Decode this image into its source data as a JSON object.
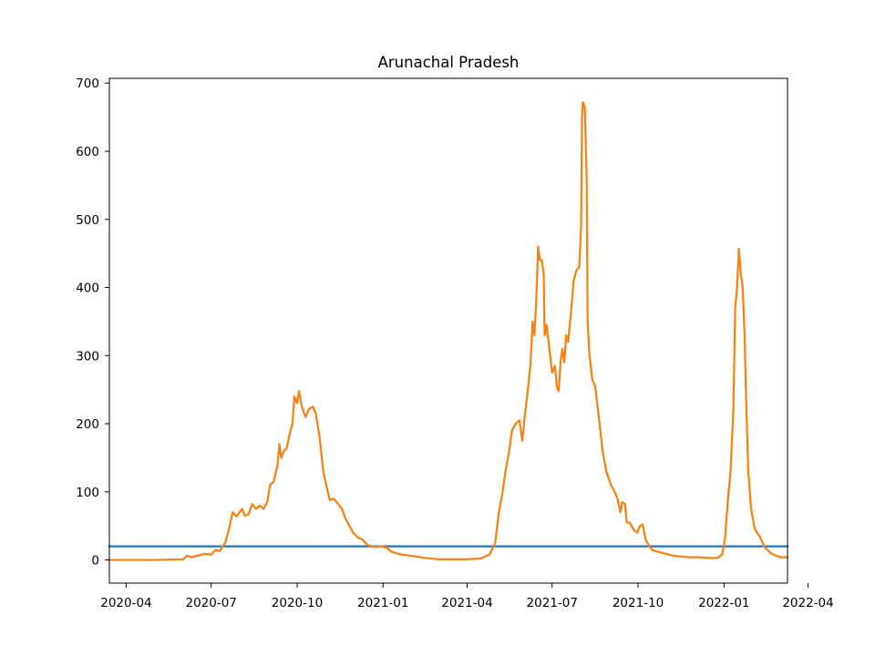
{
  "chart_data": {
    "type": "line",
    "title": "Arunachal Pradesh",
    "xlabel": "",
    "ylabel": "",
    "x_range": [
      "2020-03-14",
      "2022-03-10"
    ],
    "ylim": [
      -34,
      707
    ],
    "grid": false,
    "legend": "none",
    "x_ticks": [
      {
        "date": "2020-04-01",
        "label": "2020-04"
      },
      {
        "date": "2020-07-01",
        "label": "2020-07"
      },
      {
        "date": "2020-10-01",
        "label": "2020-10"
      },
      {
        "date": "2021-01-01",
        "label": "2021-01"
      },
      {
        "date": "2021-04-01",
        "label": "2021-04"
      },
      {
        "date": "2021-07-01",
        "label": "2021-07"
      },
      {
        "date": "2021-10-01",
        "label": "2021-10"
      },
      {
        "date": "2022-01-01",
        "label": "2022-01"
      },
      {
        "date": "2022-04-01",
        "label": "2022-04"
      }
    ],
    "y_ticks": [
      0,
      100,
      200,
      300,
      400,
      500,
      600,
      700
    ],
    "series": [
      {
        "color": "#1f77b4",
        "points": [
          [
            "2020-03-14",
            20
          ],
          [
            "2022-03-10",
            20
          ]
        ]
      },
      {
        "color": "#ff7f0e",
        "points": [
          [
            "2020-03-14",
            0
          ],
          [
            "2020-05-01",
            0
          ],
          [
            "2020-06-01",
            1
          ],
          [
            "2020-06-05",
            6
          ],
          [
            "2020-06-10",
            4
          ],
          [
            "2020-06-15",
            6
          ],
          [
            "2020-06-25",
            9
          ],
          [
            "2020-07-01",
            8
          ],
          [
            "2020-07-06",
            15
          ],
          [
            "2020-07-10",
            13
          ],
          [
            "2020-07-16",
            25
          ],
          [
            "2020-07-20",
            45
          ],
          [
            "2020-07-24",
            70
          ],
          [
            "2020-07-28",
            64
          ],
          [
            "2020-08-03",
            75
          ],
          [
            "2020-08-06",
            65
          ],
          [
            "2020-08-10",
            67
          ],
          [
            "2020-08-14",
            82
          ],
          [
            "2020-08-18",
            75
          ],
          [
            "2020-08-22",
            80
          ],
          [
            "2020-08-26",
            75
          ],
          [
            "2020-08-30",
            85
          ],
          [
            "2020-09-02",
            110
          ],
          [
            "2020-09-06",
            115
          ],
          [
            "2020-09-10",
            140
          ],
          [
            "2020-09-12",
            170
          ],
          [
            "2020-09-14",
            150
          ],
          [
            "2020-09-17",
            160
          ],
          [
            "2020-09-20",
            165
          ],
          [
            "2020-09-23",
            185
          ],
          [
            "2020-09-26",
            200
          ],
          [
            "2020-09-28",
            240
          ],
          [
            "2020-10-01",
            230
          ],
          [
            "2020-10-03",
            248
          ],
          [
            "2020-10-06",
            225
          ],
          [
            "2020-10-10",
            210
          ],
          [
            "2020-10-14",
            222
          ],
          [
            "2020-10-18",
            225
          ],
          [
            "2020-10-21",
            215
          ],
          [
            "2020-10-25",
            180
          ],
          [
            "2020-10-29",
            130
          ],
          [
            "2020-11-02",
            105
          ],
          [
            "2020-11-05",
            88
          ],
          [
            "2020-11-09",
            90
          ],
          [
            "2020-11-14",
            82
          ],
          [
            "2020-11-18",
            75
          ],
          [
            "2020-11-22",
            60
          ],
          [
            "2020-11-26",
            50
          ],
          [
            "2020-11-30",
            40
          ],
          [
            "2020-12-05",
            33
          ],
          [
            "2020-12-10",
            30
          ],
          [
            "2020-12-15",
            22
          ],
          [
            "2020-12-22",
            19
          ],
          [
            "2020-12-30",
            20
          ],
          [
            "2021-01-05",
            18
          ],
          [
            "2021-01-10",
            12
          ],
          [
            "2021-01-20",
            8
          ],
          [
            "2021-02-01",
            6
          ],
          [
            "2021-02-15",
            3
          ],
          [
            "2021-03-01",
            1
          ],
          [
            "2021-04-01",
            1
          ],
          [
            "2021-04-15",
            2
          ],
          [
            "2021-04-25",
            8
          ],
          [
            "2021-05-01",
            25
          ],
          [
            "2021-05-05",
            70
          ],
          [
            "2021-05-09",
            100
          ],
          [
            "2021-05-12",
            130
          ],
          [
            "2021-05-16",
            160
          ],
          [
            "2021-05-19",
            190
          ],
          [
            "2021-05-23",
            200
          ],
          [
            "2021-05-27",
            205
          ],
          [
            "2021-05-30",
            175
          ],
          [
            "2021-06-02",
            215
          ],
          [
            "2021-06-05",
            250
          ],
          [
            "2021-06-08",
            290
          ],
          [
            "2021-06-10",
            350
          ],
          [
            "2021-06-12",
            330
          ],
          [
            "2021-06-14",
            380
          ],
          [
            "2021-06-16",
            460
          ],
          [
            "2021-06-18",
            440
          ],
          [
            "2021-06-20",
            440
          ],
          [
            "2021-06-22",
            420
          ],
          [
            "2021-06-23",
            330
          ],
          [
            "2021-06-25",
            345
          ],
          [
            "2021-06-28",
            310
          ],
          [
            "2021-07-01",
            275
          ],
          [
            "2021-07-04",
            285
          ],
          [
            "2021-07-06",
            255
          ],
          [
            "2021-07-08",
            248
          ],
          [
            "2021-07-10",
            290
          ],
          [
            "2021-07-12",
            310
          ],
          [
            "2021-07-14",
            290
          ],
          [
            "2021-07-16",
            330
          ],
          [
            "2021-07-18",
            320
          ],
          [
            "2021-07-21",
            360
          ],
          [
            "2021-07-24",
            410
          ],
          [
            "2021-07-27",
            425
          ],
          [
            "2021-07-30",
            430
          ],
          [
            "2021-08-01",
            490
          ],
          [
            "2021-08-02",
            650
          ],
          [
            "2021-08-03",
            672
          ],
          [
            "2021-08-05",
            665
          ],
          [
            "2021-08-07",
            560
          ],
          [
            "2021-08-08",
            350
          ],
          [
            "2021-08-10",
            300
          ],
          [
            "2021-08-13",
            265
          ],
          [
            "2021-08-16",
            255
          ],
          [
            "2021-08-20",
            210
          ],
          [
            "2021-08-24",
            160
          ],
          [
            "2021-08-28",
            130
          ],
          [
            "2021-09-02",
            110
          ],
          [
            "2021-09-06",
            100
          ],
          [
            "2021-09-09",
            90
          ],
          [
            "2021-09-12",
            70
          ],
          [
            "2021-09-14",
            85
          ],
          [
            "2021-09-17",
            82
          ],
          [
            "2021-09-19",
            55
          ],
          [
            "2021-09-22",
            55
          ],
          [
            "2021-09-26",
            45
          ],
          [
            "2021-09-30",
            40
          ],
          [
            "2021-10-03",
            50
          ],
          [
            "2021-10-06",
            52
          ],
          [
            "2021-10-09",
            30
          ],
          [
            "2021-10-13",
            20
          ],
          [
            "2021-10-17",
            14
          ],
          [
            "2021-10-22",
            12
          ],
          [
            "2021-10-28",
            10
          ],
          [
            "2021-11-05",
            7
          ],
          [
            "2021-11-15",
            5
          ],
          [
            "2021-11-25",
            4
          ],
          [
            "2021-12-05",
            4
          ],
          [
            "2021-12-15",
            3
          ],
          [
            "2021-12-25",
            3
          ],
          [
            "2021-12-30",
            8
          ],
          [
            "2022-01-02",
            30
          ],
          [
            "2022-01-05",
            85
          ],
          [
            "2022-01-08",
            130
          ],
          [
            "2022-01-11",
            220
          ],
          [
            "2022-01-13",
            370
          ],
          [
            "2022-01-15",
            400
          ],
          [
            "2022-01-17",
            457
          ],
          [
            "2022-01-19",
            420
          ],
          [
            "2022-01-21",
            400
          ],
          [
            "2022-01-23",
            330
          ],
          [
            "2022-01-25",
            220
          ],
          [
            "2022-01-27",
            130
          ],
          [
            "2022-01-30",
            75
          ],
          [
            "2022-02-03",
            45
          ],
          [
            "2022-02-08",
            35
          ],
          [
            "2022-02-14",
            18
          ],
          [
            "2022-02-20",
            10
          ],
          [
            "2022-02-26",
            6
          ],
          [
            "2022-03-03",
            4
          ],
          [
            "2022-03-10",
            4
          ]
        ]
      }
    ]
  }
}
